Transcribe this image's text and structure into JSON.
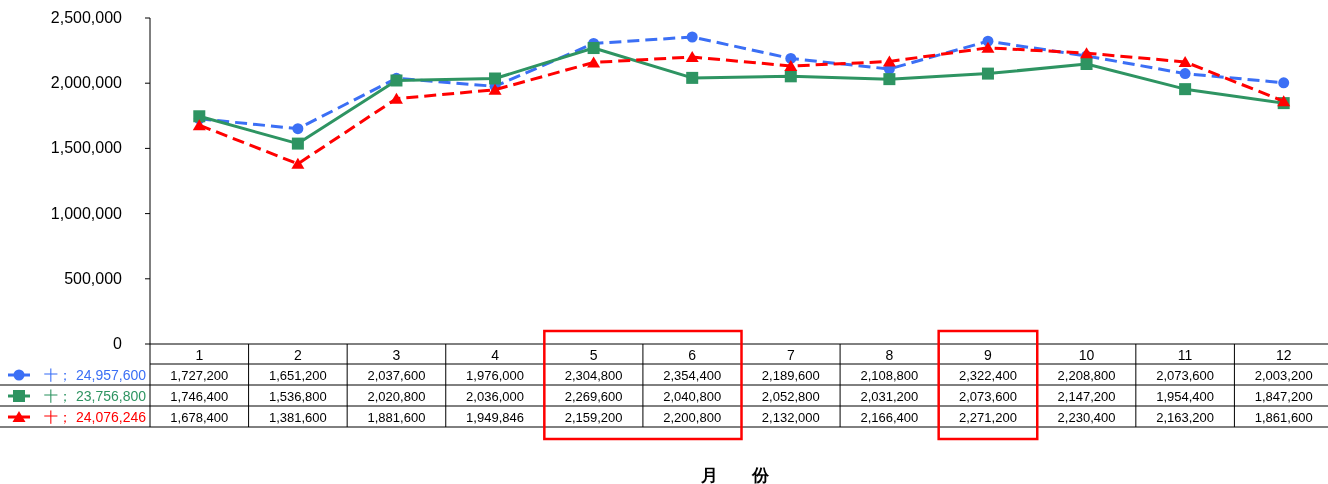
{
  "chart_data": {
    "type": "line",
    "annotations": [
      "月　　份"
    ],
    "categories": [
      "1",
      "2",
      "3",
      "4",
      "5",
      "6",
      "7",
      "8",
      "9",
      "10",
      "11",
      "12"
    ],
    "series": [
      {
        "name": "十；  24,957,600",
        "color": "#3b6ff5",
        "marker": "circle",
        "line_style": "dashed",
        "values": [
          1727200,
          1651200,
          2037600,
          1976000,
          2304800,
          2354400,
          2189600,
          2108800,
          2322400,
          2208800,
          2073600,
          2003200
        ],
        "value_labels": [
          "1,727,200",
          "1,651,200",
          "2,037,600",
          "1,976,000",
          "2,304,800",
          "2,354,400",
          "2,189,600",
          "2,108,800",
          "2,322,400",
          "2,208,800",
          "2,073,600",
          "2,003,200"
        ]
      },
      {
        "name": "十；  23,756,800",
        "color": "#2e9462",
        "marker": "square",
        "line_style": "solid",
        "values": [
          1746400,
          1536800,
          2020800,
          2036000,
          2269600,
          2040800,
          2052800,
          2031200,
          2073600,
          2147200,
          1954400,
          1847200
        ],
        "value_labels": [
          "1,746,400",
          "1,536,800",
          "2,020,800",
          "2,036,000",
          "2,269,600",
          "2,040,800",
          "2,052,800",
          "2,031,200",
          "2,073,600",
          "2,147,200",
          "1,954,400",
          "1,847,200"
        ]
      },
      {
        "name": "十；  24,076,246",
        "color": "#ff0000",
        "marker": "triangle",
        "line_style": "dashed",
        "values": [
          1678400,
          1381600,
          1881600,
          1949846,
          2159200,
          2200800,
          2132000,
          2166400,
          2271200,
          2230400,
          2163200,
          1861600
        ],
        "value_labels": [
          "1,678,400",
          "1,381,600",
          "1,881,600",
          "1,949,846",
          "2,159,200",
          "2,200,800",
          "2,132,000",
          "2,166,400",
          "2,271,200",
          "2,230,400",
          "2,163,200",
          "1,861,600"
        ]
      }
    ],
    "ylim": [
      0,
      2500000
    ],
    "yticks": [
      {
        "value": 0,
        "label": "0"
      },
      {
        "value": 500000,
        "label": "500,000"
      },
      {
        "value": 1000000,
        "label": "1,000,000"
      },
      {
        "value": 1500000,
        "label": "1,500,000"
      },
      {
        "value": 2000000,
        "label": "2,000,000"
      },
      {
        "value": 2500000,
        "label": "2,500,000"
      }
    ],
    "legend": "bottom left",
    "grid": false
  }
}
